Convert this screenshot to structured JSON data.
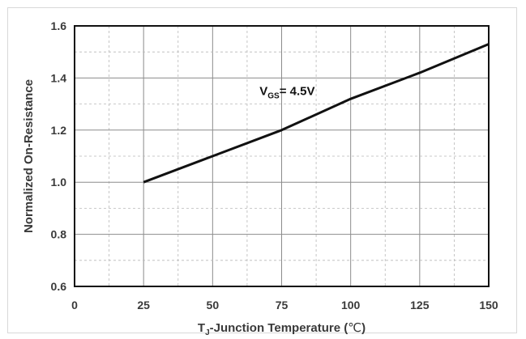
{
  "chart_data": {
    "type": "line",
    "title": "",
    "xlabel": "T",
    "xlabel_subscript": "J",
    "xlabel_rest": "-Junction Temperature (",
    "xlabel_unit": "℃",
    "xlabel_close": ")",
    "ylabel": "Normalized On-Resistance",
    "xlim": [
      0,
      150
    ],
    "ylim": [
      0.6,
      1.6
    ],
    "x_ticks": [
      "0",
      "25",
      "50",
      "75",
      "100",
      "125",
      "150"
    ],
    "y_ticks": [
      "0.6",
      "0.8",
      "1.0",
      "1.2",
      "1.4",
      "1.6"
    ],
    "grid": true,
    "series": [
      {
        "x": [
          25,
          50,
          75,
          100,
          125,
          150
        ],
        "y": [
          1.0,
          1.1,
          1.2,
          1.32,
          1.42,
          1.53
        ]
      }
    ],
    "annotation": {
      "main": "V",
      "subscript": "GS",
      "rest": "= 4.5V",
      "x": 67,
      "y": 1.35
    },
    "colors": {
      "line": "#111111",
      "grid": "#8c8c8c",
      "frame": "#111111",
      "text": "#3a3a3a"
    }
  }
}
